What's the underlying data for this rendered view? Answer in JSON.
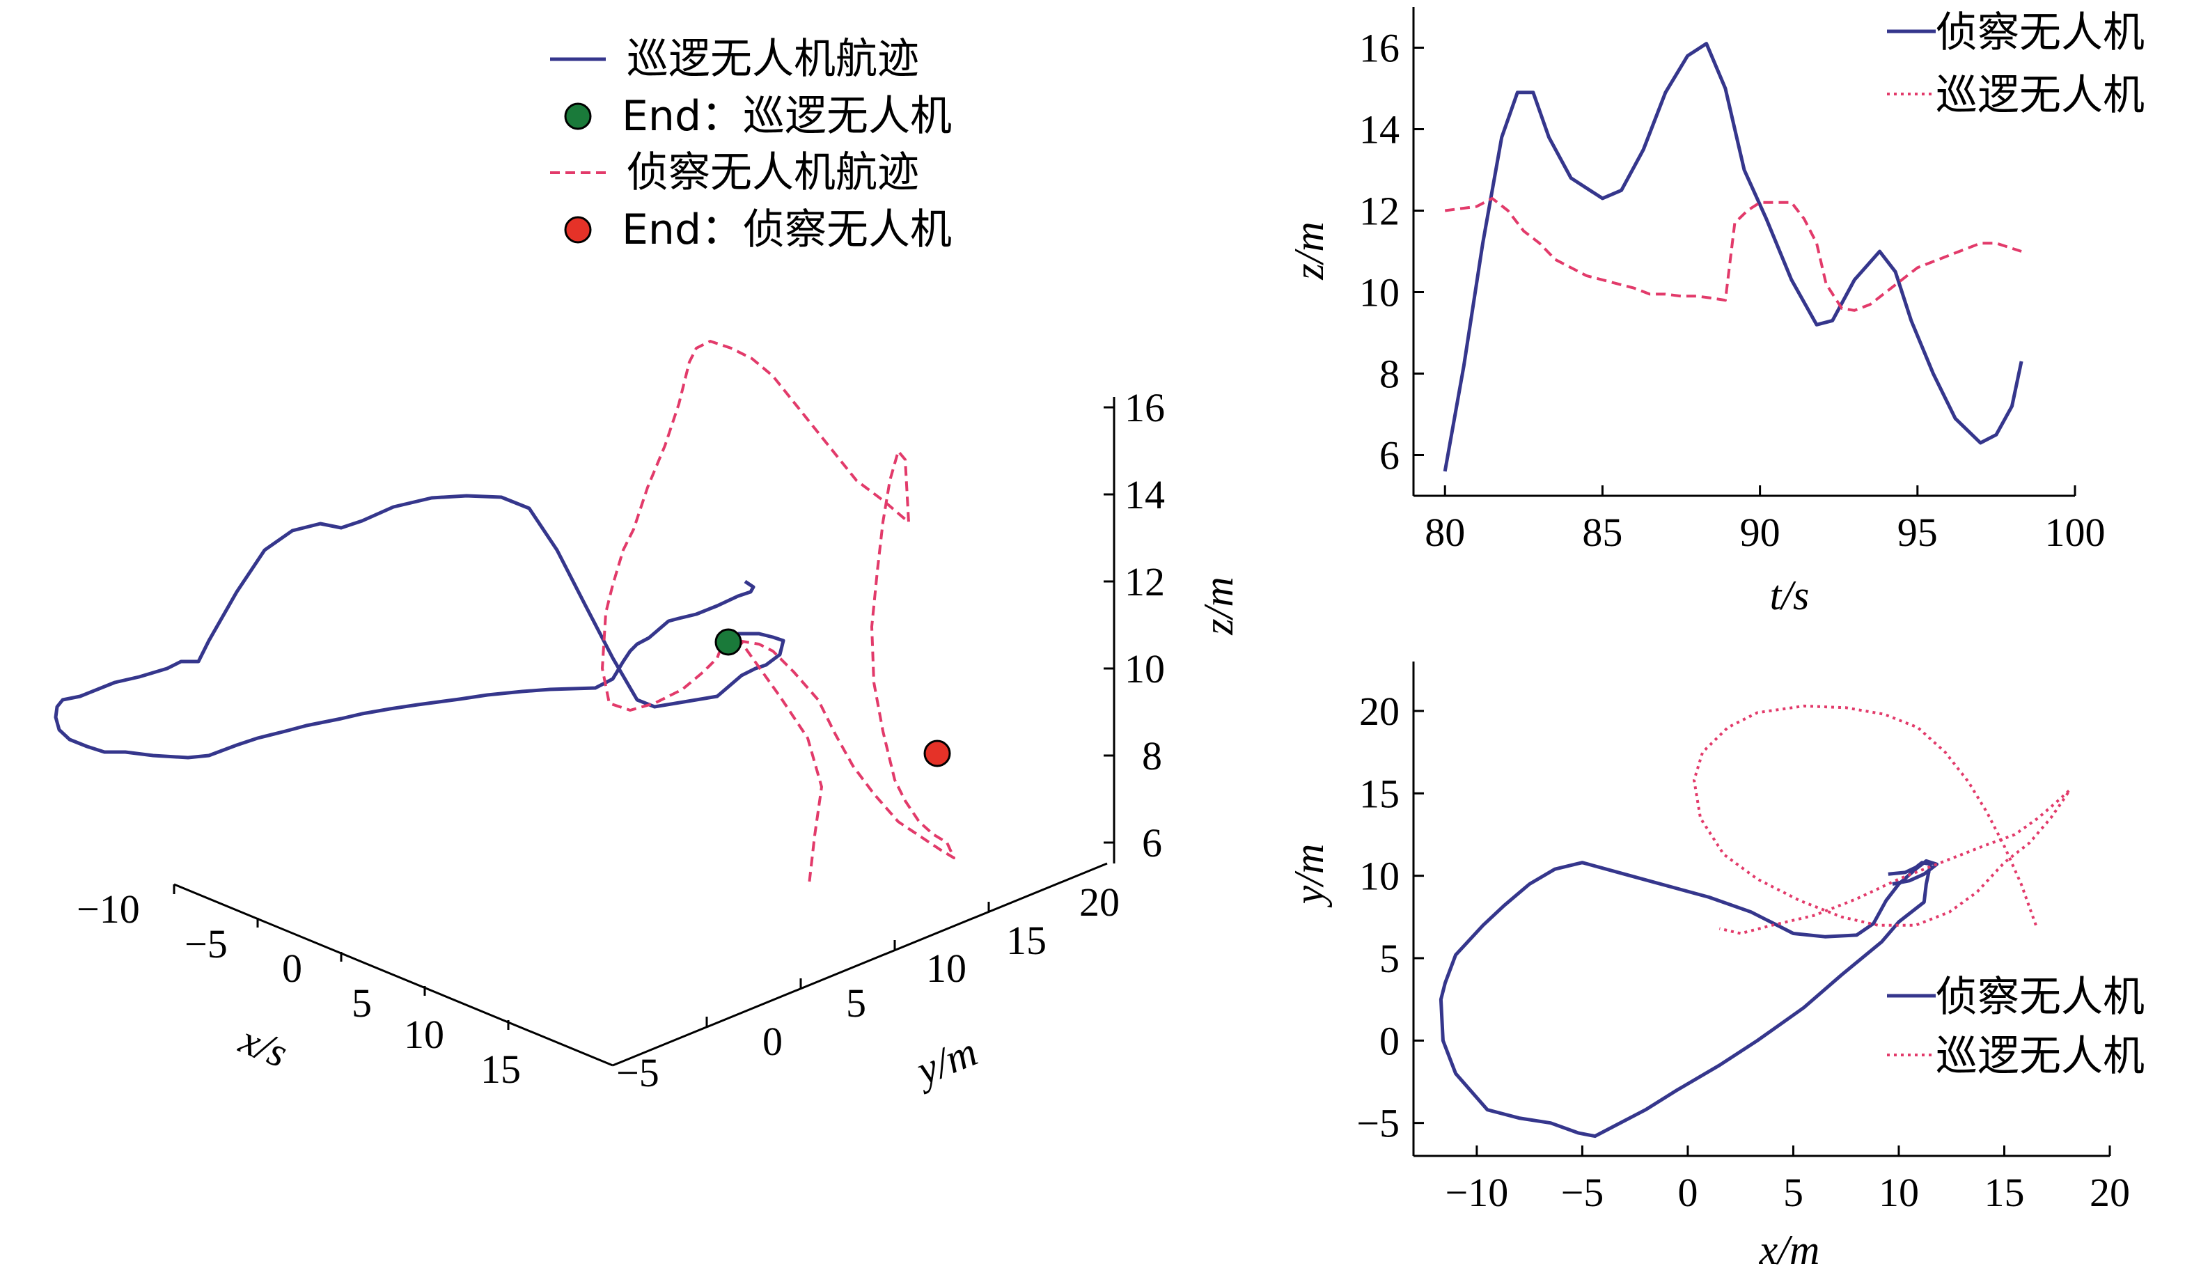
{
  "colors": {
    "patrol": "#35368c",
    "recon": "#e23a6a",
    "end_patrol": "#1a7a3a",
    "end_recon": "#e53228"
  },
  "chart_data": [
    {
      "id": "panel-3d",
      "type": "line",
      "projection": "3d",
      "xlabel": "x/s",
      "ylabel": "y/m",
      "zlabel": "z/m",
      "x_ticks": [
        "−10",
        "−5",
        "0",
        "5",
        "10",
        "15"
      ],
      "y_ticks": [
        "−5",
        "0",
        "5",
        "10",
        "15",
        "20"
      ],
      "z_ticks": [
        "16",
        "14",
        "12",
        "10",
        "8",
        "6"
      ],
      "xlim": [
        -10,
        17
      ],
      "ylim": [
        -6,
        20
      ],
      "zlim": [
        6,
        16
      ],
      "legend": {
        "position": "top-center",
        "entries": [
          {
            "label": "巡逻无人机航迹",
            "style": "solid",
            "color": "#35368c"
          },
          {
            "label": "End：巡逻无人机",
            "style": "marker",
            "color": "#1a7a3a"
          },
          {
            "label": "侦察无人机航迹",
            "style": "dashed",
            "color": "#e23a6a"
          },
          {
            "label": "End：侦察无人机",
            "style": "marker",
            "color": "#e53228"
          }
        ]
      },
      "series": [
        {
          "name": "巡逻无人机航迹",
          "style": "solid",
          "color": "#35368c",
          "points_projected": [
            [
              1070,
              835
            ],
            [
              1082,
              843
            ],
            [
              1078,
              850
            ],
            [
              1060,
              856
            ],
            [
              1030,
              870
            ],
            [
              1000,
              882
            ],
            [
              975,
              888
            ],
            [
              960,
              892
            ],
            [
              932,
              916
            ],
            [
              915,
              925
            ],
            [
              905,
              935
            ],
            [
              895,
              950
            ],
            [
              880,
              975
            ],
            [
              855,
              988
            ],
            [
              790,
              990
            ],
            [
              750,
              993
            ],
            [
              700,
              998
            ],
            [
              660,
              1004
            ],
            [
              600,
              1012
            ],
            [
              560,
              1018
            ],
            [
              520,
              1025
            ],
            [
              490,
              1032
            ],
            [
              440,
              1042
            ],
            [
              410,
              1050
            ],
            [
              370,
              1060
            ],
            [
              340,
              1070
            ],
            [
              300,
              1085
            ],
            [
              270,
              1088
            ],
            [
              220,
              1085
            ],
            [
              180,
              1080
            ],
            [
              150,
              1080
            ],
            [
              125,
              1072
            ],
            [
              100,
              1062
            ],
            [
              85,
              1048
            ],
            [
              80,
              1030
            ],
            [
              82,
              1015
            ],
            [
              90,
              1005
            ],
            [
              115,
              1000
            ],
            [
              165,
              980
            ],
            [
              200,
              972
            ],
            [
              240,
              960
            ],
            [
              260,
              950
            ],
            [
              285,
              950
            ],
            [
              300,
              920
            ],
            [
              340,
              850
            ],
            [
              380,
              790
            ],
            [
              420,
              762
            ],
            [
              460,
              752
            ],
            [
              490,
              758
            ],
            [
              520,
              748
            ],
            [
              565,
              728
            ],
            [
              620,
              715
            ],
            [
              670,
              712
            ],
            [
              720,
              714
            ],
            [
              760,
              730
            ],
            [
              800,
              790
            ],
            [
              840,
              868
            ],
            [
              880,
              945
            ],
            [
              915,
              1005
            ],
            [
              940,
              1015
            ],
            [
              1030,
              1000
            ],
            [
              1065,
              970
            ],
            [
              1085,
              960
            ],
            [
              1100,
              955
            ],
            [
              1120,
              940
            ],
            [
              1125,
              920
            ],
            [
              1110,
              915
            ],
            [
              1090,
              910
            ],
            [
              1060,
              910
            ]
          ]
        },
        {
          "name": "侦察无人机航迹",
          "style": "dashed",
          "color": "#e23a6a",
          "points_projected": [
            [
              1040,
              918
            ],
            [
              1060,
              920
            ],
            [
              1090,
              925
            ],
            [
              1110,
              935
            ],
            [
              1140,
              965
            ],
            [
              1175,
              1005
            ],
            [
              1200,
              1055
            ],
            [
              1225,
              1100
            ],
            [
              1255,
              1140
            ],
            [
              1290,
              1180
            ],
            [
              1320,
              1200
            ],
            [
              1350,
              1220
            ],
            [
              1370,
              1232
            ],
            [
              1360,
              1210
            ],
            [
              1340,
              1198
            ],
            [
              1320,
              1180
            ],
            [
              1300,
              1150
            ],
            [
              1285,
              1120
            ],
            [
              1268,
              1050
            ],
            [
              1255,
              980
            ],
            [
              1252,
              900
            ],
            [
              1260,
              820
            ],
            [
              1268,
              750
            ],
            [
              1278,
              690
            ],
            [
              1290,
              648
            ],
            [
              1300,
              660
            ],
            [
              1305,
              750
            ],
            [
              1270,
              720
            ],
            [
              1230,
              690
            ],
            [
              1190,
              640
            ],
            [
              1150,
              590
            ],
            [
              1110,
              540
            ],
            [
              1080,
              515
            ],
            [
              1050,
              500
            ],
            [
              1020,
              490
            ],
            [
              1000,
              500
            ],
            [
              990,
              520
            ],
            [
              975,
              580
            ],
            [
              955,
              640
            ],
            [
              930,
              700
            ],
            [
              910,
              760
            ],
            [
              895,
              790
            ],
            [
              880,
              840
            ],
            [
              870,
              880
            ],
            [
              865,
              960
            ],
            [
              875,
              1010
            ],
            [
              905,
              1020
            ],
            [
              940,
              1010
            ],
            [
              980,
              990
            ],
            [
              1010,
              965
            ],
            [
              1030,
              945
            ],
            [
              1040,
              918
            ],
            [
              1060,
              918
            ],
            [
              1070,
              930
            ],
            [
              1120,
              1000
            ],
            [
              1160,
              1060
            ],
            [
              1180,
              1130
            ],
            [
              1170,
              1200
            ],
            [
              1162,
              1270
            ]
          ]
        },
        {
          "name": "End：巡逻无人机",
          "style": "marker",
          "color": "#1a7a3a",
          "points_projected": [
            [
              1046,
              922
            ]
          ]
        },
        {
          "name": "End：侦察无人机",
          "style": "marker",
          "color": "#e53228",
          "points_projected": [
            [
              1346,
              1082
            ]
          ]
        }
      ]
    },
    {
      "id": "panel-zt",
      "type": "line",
      "xlabel": "t/s",
      "ylabel": "z/m",
      "xlim": [
        79,
        100
      ],
      "ylim": [
        5,
        17
      ],
      "x_ticks": [
        80,
        85,
        90,
        95,
        100
      ],
      "y_ticks": [
        6,
        8,
        10,
        12,
        14,
        16
      ],
      "legend": {
        "position": "top-right",
        "entries": [
          "侦察无人机",
          "巡逻无人机"
        ]
      },
      "series": [
        {
          "name": "侦察无人机",
          "style": "solid",
          "color": "#35368c",
          "x": [
            80,
            80.6,
            81.2,
            81.8,
            82.3,
            82.8,
            83.3,
            84,
            85,
            85.6,
            86.3,
            87,
            87.7,
            88.3,
            88.9,
            89.5,
            90.2,
            91,
            91.8,
            92.3,
            93,
            93.8,
            94.3,
            94.8,
            95.5,
            96.2,
            97,
            97.5,
            98,
            98.3
          ],
          "values": [
            5.6,
            8.2,
            11.2,
            13.8,
            14.9,
            14.9,
            13.8,
            12.8,
            12.3,
            12.5,
            13.5,
            14.9,
            15.8,
            16.1,
            15,
            13,
            11.8,
            10.3,
            9.2,
            9.3,
            10.3,
            11,
            10.5,
            9.3,
            8,
            6.9,
            6.3,
            6.5,
            7.2,
            8.3
          ]
        },
        {
          "name": "巡逻无人机",
          "style": "dashed",
          "color": "#e23a6a",
          "x": [
            80,
            81,
            81.5,
            82,
            82.5,
            83,
            83.5,
            84,
            84.5,
            85,
            85.5,
            86,
            86.5,
            87,
            87.5,
            88,
            88.5,
            88.9,
            89.2,
            89.6,
            90,
            90.5,
            91,
            91.4,
            91.8,
            92.1,
            92.6,
            93,
            93.5,
            94,
            95,
            96,
            97,
            97.5,
            98.3
          ],
          "values": [
            12,
            12.1,
            12.3,
            12,
            11.5,
            11.2,
            10.8,
            10.6,
            10.4,
            10.3,
            10.2,
            10.1,
            9.95,
            9.95,
            9.9,
            9.9,
            9.85,
            9.8,
            11.7,
            12,
            12.2,
            12.2,
            12.2,
            11.8,
            11.2,
            10.2,
            9.6,
            9.55,
            9.7,
            10,
            10.6,
            10.9,
            11.2,
            11.2,
            11
          ]
        }
      ]
    },
    {
      "id": "panel-xy",
      "type": "line",
      "xlabel": "x/m",
      "ylabel": "y/m",
      "xlim": [
        -13,
        20
      ],
      "ylim": [
        -7,
        23
      ],
      "x_ticks": [
        -10,
        -5,
        0,
        5,
        10,
        15,
        20
      ],
      "x_tick_labels": [
        "−10",
        "−5",
        "0",
        "5",
        "10",
        "15",
        "20"
      ],
      "y_ticks": [
        -5,
        0,
        5,
        10,
        15,
        20
      ],
      "y_tick_labels": [
        "−5",
        "0",
        "5",
        "10",
        "15",
        "20"
      ],
      "legend": {
        "position": "bottom-right",
        "entries": [
          "侦察无人机",
          "巡逻无人机"
        ]
      },
      "series": [
        {
          "name": "侦察无人机",
          "style": "solid",
          "color": "#35368c",
          "x": [
            9.5,
            10.3,
            10.8,
            11.1,
            11.5,
            11.3,
            11.2,
            10,
            9.2,
            7.3,
            5.5,
            3.3,
            1.5,
            -0.5,
            -2,
            -3.5,
            -4.4,
            -5.2,
            -6.5,
            -8,
            -9.5,
            -11,
            -11.6,
            -11.7,
            -11.5,
            -11,
            -9.7,
            -8.7,
            -7.5,
            -6.3,
            -5,
            -3,
            -1,
            1,
            3,
            5,
            6.5,
            8,
            8.8,
            9.4,
            10,
            10.8,
            11.3,
            11.8,
            11.2,
            10.5,
            9.7
          ],
          "values": [
            10.1,
            10.2,
            10.5,
            10.8,
            10.7,
            9.5,
            8.4,
            7.2,
            6,
            4,
            2,
            0,
            -1.5,
            -3,
            -4.2,
            -5.2,
            -5.8,
            -5.6,
            -5,
            -4.7,
            -4.2,
            -2,
            0,
            2.5,
            3.5,
            5.2,
            7,
            8.2,
            9.5,
            10.4,
            10.8,
            10.1,
            9.4,
            8.7,
            7.8,
            6.5,
            6.3,
            6.4,
            7.1,
            8.5,
            9.5,
            10.4,
            10.9,
            10.7,
            10.1,
            9.7,
            9.5
          ]
        },
        {
          "name": "巡逻无人机",
          "style": "dotted",
          "color": "#e23a6a",
          "x": [
            16.5,
            15.8,
            15,
            14.2,
            13.3,
            12.2,
            10.9,
            9.3,
            7.5,
            5.5,
            3.3,
            1.9,
            0.7,
            0.3,
            0.6,
            1.7,
            3.3,
            5.3,
            7.3,
            9,
            10.8,
            12.4,
            13.7,
            15,
            16.2,
            17.2,
            17.9,
            18.1,
            17.5,
            16.6,
            15.5,
            14,
            12,
            10,
            8,
            6,
            4,
            2.5,
            1.5
          ],
          "values": [
            7,
            9.5,
            11.8,
            13.8,
            15.7,
            17.5,
            19,
            19.8,
            20.2,
            20.3,
            19.9,
            19,
            17.5,
            15.8,
            13.5,
            11.3,
            9.8,
            8.5,
            7.5,
            7,
            7,
            7.8,
            9,
            10.8,
            12,
            13.5,
            14.8,
            15.2,
            14.5,
            13.5,
            12.5,
            11.8,
            10.8,
            9.8,
            8.6,
            7.6,
            7,
            6.5,
            6.8
          ]
        }
      ]
    }
  ]
}
